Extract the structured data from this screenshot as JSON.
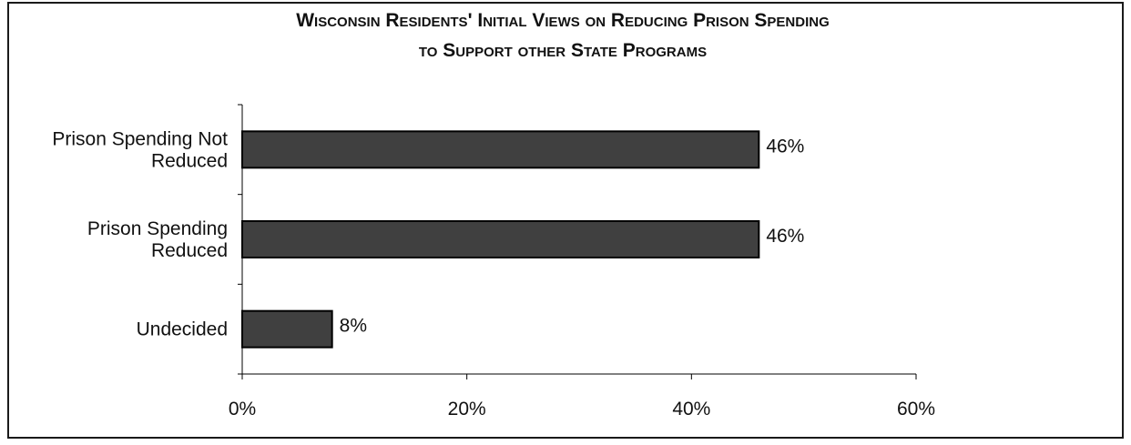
{
  "chart_data": {
    "type": "bar",
    "orientation": "horizontal",
    "title_lines": [
      "Wisconsin Residents' Initial Views on Reducing Prison Spending",
      "to Support other State Programs"
    ],
    "categories": [
      [
        "Prison Spending Not",
        "Reduced"
      ],
      [
        "Prison Spending",
        "Reduced"
      ],
      [
        "Undecided"
      ]
    ],
    "values": [
      46,
      46,
      8
    ],
    "data_labels": [
      "46%",
      "46%",
      "8%"
    ],
    "xlim": [
      0,
      60
    ],
    "xticks": [
      0,
      20,
      40,
      60
    ],
    "xtick_labels": [
      "0%",
      "20%",
      "40%",
      "60%"
    ],
    "bar_color": "#404040",
    "bar_edge_color": "#000000",
    "grid": false,
    "legend": "none"
  }
}
